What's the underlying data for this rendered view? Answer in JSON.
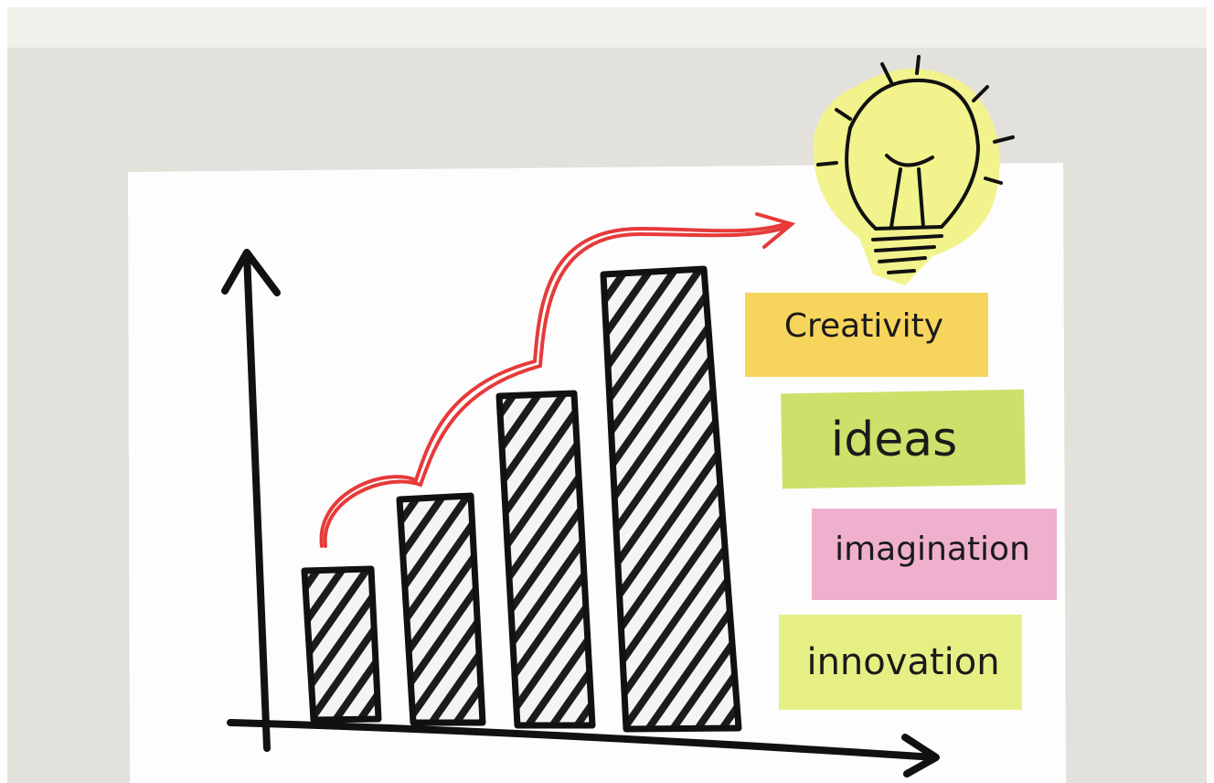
{
  "notes": [
    {
      "label": "Creativity"
    },
    {
      "label": "ideas"
    },
    {
      "label": "imagination"
    },
    {
      "label": "innovation"
    }
  ]
}
